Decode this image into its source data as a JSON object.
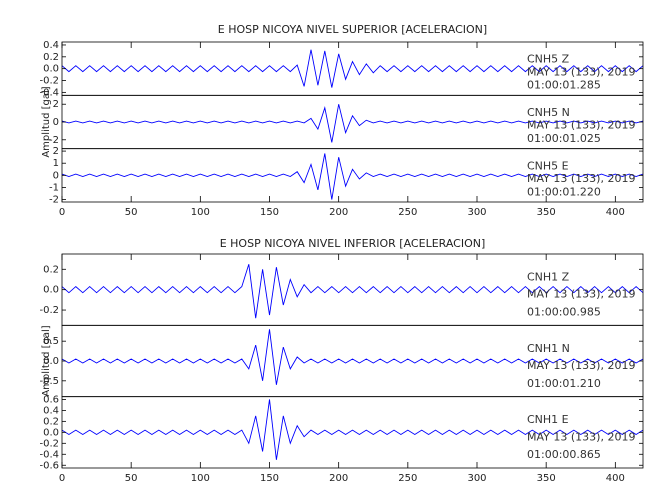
{
  "chart_data": [
    {
      "type": "seismogram",
      "title": "E HOSP NICOYA NIVEL SUPERIOR [ACELERACION]",
      "ylabel": "Amplitud [gal]",
      "xlim": [
        0,
        420
      ],
      "xticks": [
        0,
        50,
        100,
        150,
        200,
        250,
        300,
        350,
        400
      ],
      "x": [
        0,
        5,
        10,
        15,
        20,
        25,
        30,
        35,
        40,
        45,
        50,
        55,
        60,
        65,
        70,
        75,
        80,
        85,
        90,
        95,
        100,
        105,
        110,
        115,
        120,
        125,
        130,
        135,
        140,
        145,
        150,
        155,
        160,
        165,
        170,
        175,
        180,
        185,
        190,
        195,
        200,
        205,
        210,
        215,
        220,
        225,
        230,
        235,
        240,
        245,
        250,
        255,
        260,
        265,
        270,
        275,
        280,
        285,
        290,
        295,
        300,
        305,
        310,
        315,
        320,
        325,
        330,
        335,
        340,
        345,
        350,
        355,
        360,
        365,
        370,
        375,
        380,
        385,
        390,
        395,
        400,
        405,
        410,
        415,
        420
      ],
      "panels": [
        {
          "station": "CNH5   Z",
          "date": "MAY 13 (133), 2019",
          "time": "01:00:01.285",
          "color": "#0000ff",
          "ylim": [
            -0.45,
            0.45
          ],
          "yticks": [
            -0.4,
            -0.2,
            {
              "value": 0,
              "label": "0.0"
            },
            0.2,
            0.4
          ],
          "values": [
            0.05,
            -0.05,
            0.05,
            -0.05,
            0.05,
            -0.05,
            0.05,
            -0.05,
            0.05,
            -0.05,
            0.05,
            -0.05,
            0.05,
            -0.05,
            0.05,
            -0.05,
            0.05,
            -0.05,
            0.05,
            -0.05,
            0.05,
            -0.05,
            0.05,
            -0.05,
            0.05,
            -0.05,
            0.05,
            -0.05,
            0.05,
            -0.05,
            0.05,
            -0.05,
            0.05,
            -0.05,
            0.06,
            -0.3,
            0.32,
            -0.28,
            0.3,
            -0.32,
            0.25,
            -0.18,
            0.12,
            -0.1,
            0.08,
            -0.07,
            0.05,
            -0.05,
            0.05,
            -0.05,
            0.05,
            -0.05,
            0.05,
            -0.05,
            0.05,
            -0.05,
            0.05,
            -0.05,
            0.05,
            -0.05,
            0.05,
            -0.05,
            0.05,
            -0.05,
            0.05,
            -0.05,
            0.05,
            -0.05,
            0.05,
            -0.05,
            0.05,
            -0.05,
            0.05,
            -0.05,
            0.05,
            -0.05,
            0.05,
            -0.05,
            0.05,
            -0.05,
            0.05,
            -0.05,
            0.05,
            -0.05,
            0.05
          ]
        },
        {
          "station": "CNH5   N",
          "date": "MAY 13 (133), 2019",
          "time": "01:00:01.025",
          "color": "#0000ff",
          "ylim": [
            -3,
            3
          ],
          "yticks": [
            -2,
            0,
            2
          ],
          "values": [
            0.1,
            -0.1,
            0.1,
            -0.1,
            0.1,
            -0.1,
            0.1,
            -0.1,
            0.1,
            -0.1,
            0.1,
            -0.1,
            0.1,
            -0.1,
            0.1,
            -0.1,
            0.1,
            -0.1,
            0.1,
            -0.1,
            0.1,
            -0.1,
            0.1,
            -0.1,
            0.1,
            -0.1,
            0.1,
            -0.1,
            0.1,
            -0.1,
            0.1,
            -0.1,
            0.1,
            -0.1,
            0.1,
            -0.1,
            0.4,
            -0.8,
            1.6,
            -2.3,
            2.0,
            -1.2,
            0.7,
            -0.4,
            0.2,
            -0.1,
            0.1,
            -0.1,
            0.1,
            -0.1,
            0.1,
            -0.1,
            0.1,
            -0.1,
            0.1,
            -0.1,
            0.1,
            -0.1,
            0.1,
            -0.1,
            0.1,
            -0.1,
            0.1,
            -0.1,
            0.1,
            -0.1,
            0.1,
            -0.1,
            0.1,
            -0.1,
            0.1,
            -0.1,
            0.1,
            -0.1,
            0.1,
            -0.1,
            0.1,
            -0.1,
            0.1,
            -0.1,
            0.1,
            -0.1,
            0.1,
            -0.1,
            0.1
          ]
        },
        {
          "station": "CNH5   E",
          "date": "MAY 13 (133), 2019",
          "time": "01:00:01.220",
          "color": "#0000ff",
          "ylim": [
            -2.2,
            2.2
          ],
          "yticks": [
            -2,
            -1,
            0,
            1,
            2
          ],
          "values": [
            0.1,
            -0.1,
            0.1,
            -0.1,
            0.1,
            -0.1,
            0.1,
            -0.1,
            0.1,
            -0.1,
            0.1,
            -0.1,
            0.1,
            -0.1,
            0.1,
            -0.1,
            0.1,
            -0.1,
            0.1,
            -0.1,
            0.1,
            -0.1,
            0.1,
            -0.1,
            0.1,
            -0.1,
            0.1,
            -0.1,
            0.1,
            -0.1,
            0.1,
            -0.1,
            0.1,
            -0.1,
            0.3,
            -0.6,
            0.9,
            -1.2,
            1.8,
            -2.0,
            1.5,
            -0.9,
            0.5,
            -0.3,
            0.2,
            -0.1,
            0.1,
            -0.1,
            0.1,
            -0.1,
            0.1,
            -0.1,
            0.1,
            -0.1,
            0.1,
            -0.1,
            0.1,
            -0.1,
            0.1,
            -0.1,
            0.1,
            -0.1,
            0.1,
            -0.1,
            0.1,
            -0.1,
            0.1,
            -0.1,
            0.1,
            -0.1,
            0.1,
            -0.1,
            0.1,
            -0.1,
            0.1,
            -0.1,
            0.1,
            -0.1,
            0.1,
            -0.1,
            0.1,
            -0.1,
            0.1,
            -0.1,
            0.1
          ]
        }
      ]
    },
    {
      "type": "seismogram",
      "title": "E HOSP NICOYA NIVEL INFERIOR [ACELERACION]",
      "ylabel": "Amplitud [gal]",
      "xlim": [
        0,
        420
      ],
      "xticks": [
        0,
        50,
        100,
        150,
        200,
        250,
        300,
        350,
        400
      ],
      "x": [
        0,
        5,
        10,
        15,
        20,
        25,
        30,
        35,
        40,
        45,
        50,
        55,
        60,
        65,
        70,
        75,
        80,
        85,
        90,
        95,
        100,
        105,
        110,
        115,
        120,
        125,
        130,
        135,
        140,
        145,
        150,
        155,
        160,
        165,
        170,
        175,
        180,
        185,
        190,
        195,
        200,
        205,
        210,
        215,
        220,
        225,
        230,
        235,
        240,
        245,
        250,
        255,
        260,
        265,
        270,
        275,
        280,
        285,
        290,
        295,
        300,
        305,
        310,
        315,
        320,
        325,
        330,
        335,
        340,
        345,
        350,
        355,
        360,
        365,
        370,
        375,
        380,
        385,
        390,
        395,
        400,
        405,
        410,
        415,
        420
      ],
      "panels": [
        {
          "station": "CNH1   Z",
          "date": "MAY 13 (133), 2019",
          "time": "01:00:00.985",
          "color": "#0000ff",
          "ylim": [
            -0.35,
            0.35
          ],
          "yticks": [
            -0.2,
            {
              "value": 0,
              "label": "0.0"
            },
            0.2
          ],
          "values": [
            0.03,
            -0.03,
            0.03,
            -0.03,
            0.03,
            -0.03,
            0.03,
            -0.03,
            0.03,
            -0.03,
            0.03,
            -0.03,
            0.03,
            -0.03,
            0.03,
            -0.03,
            0.03,
            -0.03,
            0.03,
            -0.03,
            0.03,
            -0.03,
            0.03,
            -0.03,
            0.03,
            -0.03,
            0.03,
            0.25,
            -0.28,
            0.2,
            -0.25,
            0.22,
            -0.15,
            0.1,
            -0.07,
            0.05,
            -0.03,
            0.03,
            -0.03,
            0.03,
            -0.03,
            0.03,
            -0.03,
            0.03,
            -0.03,
            0.03,
            -0.03,
            0.03,
            -0.03,
            0.03,
            -0.03,
            0.03,
            -0.03,
            0.03,
            -0.03,
            0.03,
            -0.03,
            0.03,
            -0.03,
            0.03,
            -0.03,
            0.03,
            -0.03,
            0.03,
            -0.03,
            0.03,
            -0.03,
            0.03,
            -0.03,
            0.03,
            -0.03,
            0.03,
            -0.03,
            0.03,
            -0.03,
            0.03,
            -0.03,
            0.03,
            -0.03,
            0.03,
            -0.03,
            0.03,
            -0.03,
            0.03,
            -0.03
          ]
        },
        {
          "station": "CNH1   N",
          "date": "MAY 13 (133), 2019",
          "time": "01:00:01.210",
          "color": "#0000ff",
          "ylim": [
            -0.9,
            0.9
          ],
          "yticks": [
            -0.5,
            {
              "value": 0,
              "label": "0.0"
            },
            0.5
          ],
          "values": [
            0.05,
            -0.05,
            0.05,
            -0.05,
            0.05,
            -0.05,
            0.05,
            -0.05,
            0.05,
            -0.05,
            0.05,
            -0.05,
            0.05,
            -0.05,
            0.05,
            -0.05,
            0.05,
            -0.05,
            0.05,
            -0.05,
            0.05,
            -0.05,
            0.05,
            -0.05,
            0.05,
            -0.05,
            0.05,
            -0.2,
            0.4,
            -0.5,
            0.8,
            -0.6,
            0.35,
            -0.2,
            0.1,
            -0.05,
            0.05,
            -0.05,
            0.05,
            -0.05,
            0.05,
            -0.05,
            0.05,
            -0.05,
            0.05,
            -0.05,
            0.05,
            -0.05,
            0.05,
            -0.05,
            0.05,
            -0.05,
            0.05,
            -0.05,
            0.05,
            -0.05,
            0.05,
            -0.05,
            0.05,
            -0.05,
            0.05,
            -0.05,
            0.05,
            -0.05,
            0.05,
            -0.05,
            0.05,
            -0.05,
            0.05,
            -0.05,
            0.05,
            -0.05,
            0.05,
            -0.05,
            0.05,
            -0.05,
            0.05,
            -0.05,
            0.05,
            -0.05,
            0.05,
            -0.05,
            0.05,
            -0.05,
            0.05
          ]
        },
        {
          "station": "CNH1   E",
          "date": "MAY 13 (133), 2019",
          "time": "01:00:00.865",
          "color": "#0000ff",
          "ylim": [
            -0.65,
            0.65
          ],
          "yticks": [
            -0.6,
            -0.4,
            -0.2,
            {
              "value": 0,
              "label": "0.0"
            },
            0.2,
            0.4,
            0.6
          ],
          "values": [
            0.04,
            -0.04,
            0.04,
            -0.04,
            0.04,
            -0.04,
            0.04,
            -0.04,
            0.04,
            -0.04,
            0.04,
            -0.04,
            0.04,
            -0.04,
            0.04,
            -0.04,
            0.04,
            -0.04,
            0.04,
            -0.04,
            0.04,
            -0.04,
            0.04,
            -0.04,
            0.04,
            -0.04,
            0.04,
            -0.2,
            0.3,
            -0.35,
            0.6,
            -0.5,
            0.3,
            -0.2,
            0.12,
            -0.08,
            0.04,
            -0.04,
            0.04,
            -0.04,
            0.04,
            -0.04,
            0.04,
            -0.04,
            0.04,
            -0.04,
            0.04,
            -0.04,
            0.04,
            -0.04,
            0.04,
            -0.04,
            0.04,
            -0.04,
            0.04,
            -0.04,
            0.04,
            -0.04,
            0.04,
            -0.04,
            0.04,
            -0.04,
            0.04,
            -0.04,
            0.04,
            -0.04,
            0.04,
            -0.04,
            0.04,
            -0.04,
            0.04,
            -0.04,
            0.04,
            -0.04,
            0.04,
            -0.04,
            0.04,
            -0.04,
            0.04,
            -0.04,
            0.04,
            -0.04,
            0.04,
            -0.04,
            0.04
          ]
        }
      ]
    }
  ]
}
